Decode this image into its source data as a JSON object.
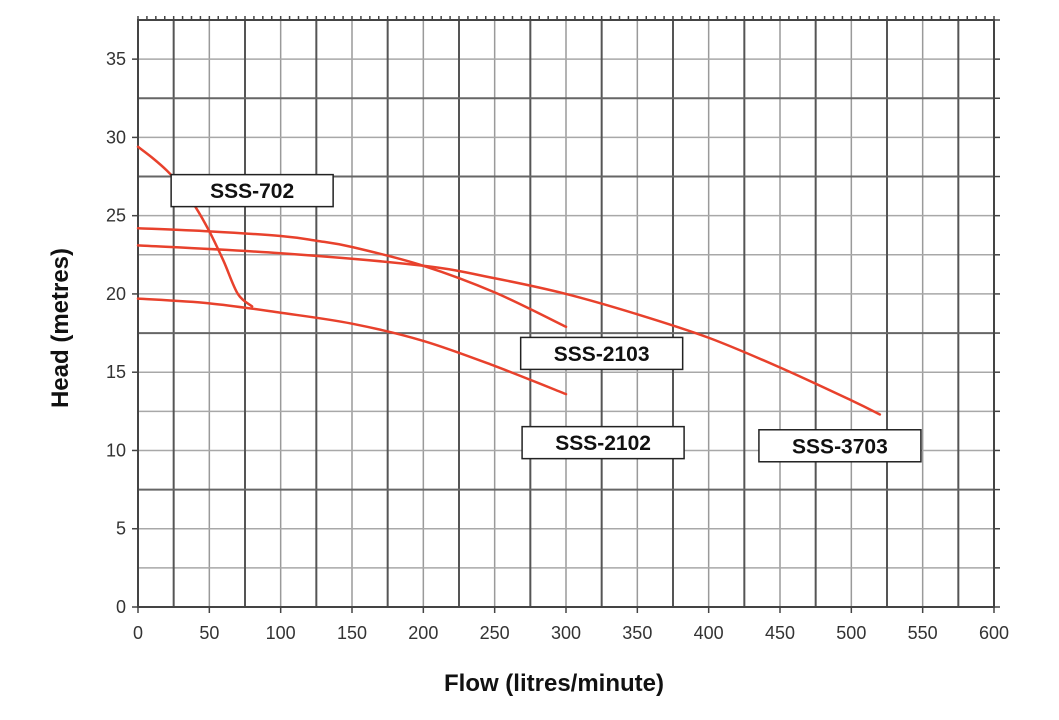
{
  "chart_data": {
    "type": "line",
    "title": "",
    "xlabel": "Flow (litres/minute)",
    "ylabel": "Head (metres)",
    "xlim": [
      0,
      600
    ],
    "ylim": [
      0,
      37.5
    ],
    "xticks": [
      0,
      50,
      100,
      150,
      200,
      250,
      300,
      350,
      400,
      450,
      500,
      550,
      600
    ],
    "xtick_labels": [
      "0",
      "50",
      "100",
      "150",
      "200",
      "250",
      "300",
      "350",
      "400",
      "450",
      "500",
      "550",
      "600"
    ],
    "yticks": [
      0,
      5,
      10,
      15,
      20,
      25,
      30,
      35
    ],
    "ytick_labels": [
      "0",
      "5",
      "10",
      "15",
      "20",
      "25",
      "30",
      "35"
    ],
    "grid": true,
    "line_color": "#e8412c",
    "series": [
      {
        "name": "SSS-702",
        "x": [
          0,
          10,
          20,
          30,
          40,
          50,
          60,
          70,
          80
        ],
        "y": [
          29.4,
          28.7,
          27.9,
          26.9,
          25.6,
          24.0,
          22.1,
          20.0,
          19.2
        ]
      },
      {
        "name": "SSS-2103",
        "x": [
          0,
          50,
          100,
          125,
          150,
          200,
          250,
          300
        ],
        "y": [
          24.2,
          24.0,
          23.7,
          23.4,
          23.0,
          21.8,
          20.1,
          17.9
        ]
      },
      {
        "name": "SSS-2102",
        "x": [
          0,
          50,
          100,
          150,
          200,
          250,
          300
        ],
        "y": [
          19.7,
          19.4,
          18.8,
          18.1,
          17.0,
          15.4,
          13.6
        ]
      },
      {
        "name": "SSS-3703",
        "x": [
          0,
          100,
          200,
          250,
          300,
          350,
          400,
          450,
          500,
          520
        ],
        "y": [
          23.1,
          22.6,
          21.8,
          21.0,
          20.0,
          18.7,
          17.2,
          15.3,
          13.2,
          12.3
        ]
      }
    ],
    "annotations": [
      {
        "text": "SSS-702",
        "x": 80,
        "y": 26.6
      },
      {
        "text": "SSS-2103",
        "x": 325,
        "y": 16.2
      },
      {
        "text": "SSS-2102",
        "x": 326,
        "y": 10.5
      },
      {
        "text": "SSS-3703",
        "x": 492,
        "y": 10.3
      }
    ]
  }
}
